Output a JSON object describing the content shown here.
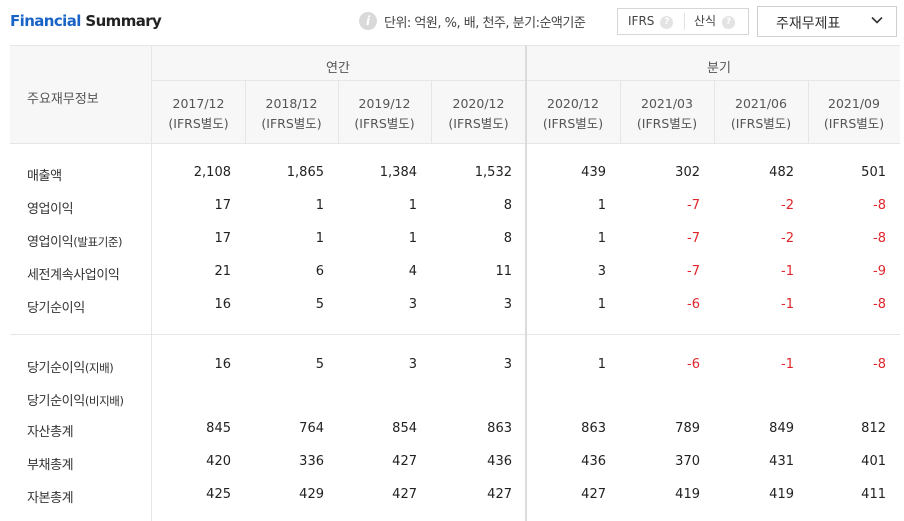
{
  "header": {
    "title_part1": "Financial",
    "title_part2": " Summary",
    "info_icon": "i",
    "unit_text": "단위: 억원, %, 배, 천주, 분기:순액기준",
    "toggle": {
      "ifrs": "IFRS",
      "formula": "산식",
      "help_icon": "?"
    },
    "dropdown": {
      "label": "주재무제표",
      "icon": "chevron-down-icon"
    }
  },
  "table": {
    "row_header": "주요재무정보",
    "group_annual": "연간",
    "group_quarter": "분기",
    "columns": [
      {
        "period": "2017/12",
        "basis": "(IFRS별도)"
      },
      {
        "period": "2018/12",
        "basis": "(IFRS별도)"
      },
      {
        "period": "2019/12",
        "basis": "(IFRS별도)"
      },
      {
        "period": "2020/12",
        "basis": "(IFRS별도)"
      },
      {
        "period": "2020/12",
        "basis": "(IFRS별도)"
      },
      {
        "period": "2021/03",
        "basis": "(IFRS별도)"
      },
      {
        "period": "2021/06",
        "basis": "(IFRS별도)"
      },
      {
        "period": "2021/09",
        "basis": "(IFRS별도)"
      }
    ],
    "rows": [
      {
        "label": "매출액",
        "sub": "",
        "values": [
          "2,108",
          "1,865",
          "1,384",
          "1,532",
          "439",
          "302",
          "482",
          "501"
        ]
      },
      {
        "label": "영업이익",
        "sub": "",
        "values": [
          "17",
          "1",
          "1",
          "8",
          "1",
          "-7",
          "-2",
          "-8"
        ]
      },
      {
        "label": "영업이익",
        "sub": "(발표기준)",
        "values": [
          "17",
          "1",
          "1",
          "8",
          "1",
          "-7",
          "-2",
          "-8"
        ]
      },
      {
        "label": "세전계속사업이익",
        "sub": "",
        "values": [
          "21",
          "6",
          "4",
          "11",
          "3",
          "-7",
          "-1",
          "-9"
        ]
      },
      {
        "label": "당기순이익",
        "sub": "",
        "values": [
          "16",
          "5",
          "3",
          "3",
          "1",
          "-6",
          "-1",
          "-8"
        ]
      },
      {
        "label": "당기순이익",
        "sub": "(지배)",
        "values": [
          "16",
          "5",
          "3",
          "3",
          "1",
          "-6",
          "-1",
          "-8"
        ]
      },
      {
        "label": "당기순이익",
        "sub": "(비지배)",
        "values": [
          "",
          "",
          "",
          "",
          "",
          "",
          "",
          ""
        ]
      },
      {
        "label": "자산총계",
        "sub": "",
        "values": [
          "845",
          "764",
          "854",
          "863",
          "863",
          "789",
          "849",
          "812"
        ]
      },
      {
        "label": "부채총계",
        "sub": "",
        "values": [
          "420",
          "336",
          "427",
          "436",
          "436",
          "370",
          "431",
          "401"
        ]
      },
      {
        "label": "자본총계",
        "sub": "",
        "values": [
          "425",
          "429",
          "427",
          "427",
          "427",
          "419",
          "419",
          "411"
        ]
      }
    ]
  },
  "colors": {
    "accent": "#1a64c8",
    "negative": "#e0262c",
    "header_bg": "#f7f7f7",
    "border": "#e6e6e6"
  }
}
